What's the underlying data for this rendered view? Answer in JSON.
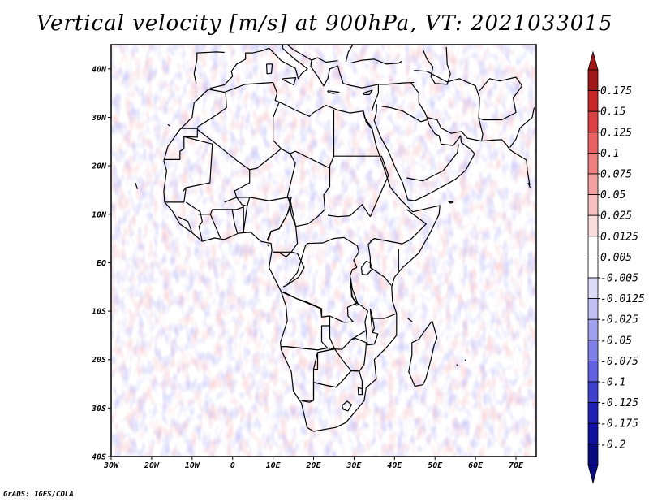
{
  "title": "Vertical velocity [m/s] at 900hPa, VT: 2021033015",
  "credit": "GrADS: IGES/COLA",
  "map": {
    "lon_range": [
      -30,
      75
    ],
    "lat_range": [
      -40,
      45
    ],
    "x_ticks": [
      "30W",
      "20W",
      "10W",
      "0",
      "10E",
      "20E",
      "30E",
      "40E",
      "50E",
      "60E",
      "70E"
    ],
    "y_ticks": [
      "40N",
      "30N",
      "20N",
      "10N",
      "EQ",
      "10S",
      "20S",
      "30S",
      "40S"
    ]
  },
  "colorbar": {
    "labels": [
      "0.175",
      "0.15",
      "0.125",
      "0.1",
      "0.075",
      "0.05",
      "0.025",
      "0.0125",
      "0.005",
      "-0.005",
      "-0.0125",
      "-0.025",
      "-0.05",
      "-0.075",
      "-0.1",
      "-0.125",
      "-0.175",
      "-0.2"
    ],
    "colors": [
      "#a01818",
      "#c82828",
      "#dc4040",
      "#e86060",
      "#f08080",
      "#f5a0a0",
      "#f8c0c0",
      "#fbdcdc",
      "#ffffff",
      "#ffffff",
      "#dcdcfa",
      "#c0c0f5",
      "#a0a0f0",
      "#8080e8",
      "#6060e0",
      "#4040d0",
      "#2020b8",
      "#1010a0",
      "#0a0a80"
    ]
  }
}
